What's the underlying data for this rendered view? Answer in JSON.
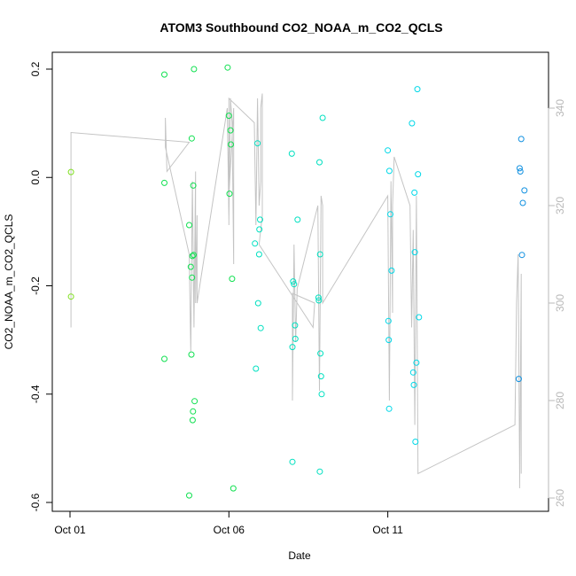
{
  "chart_data": {
    "type": "scatter",
    "title": "ATOM3 Southbound CO2_NOAA_m_CO2_QCLS",
    "xlabel": "Date",
    "ylabel": "CO2_NOAA_m_CO2_QCLS",
    "x_ticks": [
      "Oct 01",
      "Oct 06",
      "Oct 11"
    ],
    "xlim": [
      0,
      14.5
    ],
    "ylim": [
      -0.6,
      0.2
    ],
    "y_ticks": [
      "-0.6",
      "-0.4",
      "-0.2",
      "0.0",
      "0.2"
    ],
    "y2lim": [
      260,
      340
    ],
    "y2_ticks": [
      "260",
      "280",
      "300",
      "320",
      "340"
    ],
    "grid": false,
    "legend": "none",
    "point_color_scale": [
      "#80e020",
      "#10e050",
      "#00e0c0",
      "#00d8e8",
      "#1090e0"
    ],
    "series": [
      {
        "role": "difference (circles, left axis)",
        "points": [
          [
            0.03,
            0.01
          ],
          [
            0.03,
            -0.22
          ],
          [
            2.97,
            0.19
          ],
          [
            2.97,
            -0.01
          ],
          [
            2.97,
            -0.335
          ],
          [
            3.75,
            -0.088
          ],
          [
            3.75,
            -0.587
          ],
          [
            3.8,
            -0.165
          ],
          [
            3.82,
            -0.327
          ],
          [
            3.83,
            0.072
          ],
          [
            3.84,
            -0.185
          ],
          [
            3.85,
            -0.145
          ],
          [
            3.86,
            -0.448
          ],
          [
            3.87,
            -0.432
          ],
          [
            3.88,
            -0.015
          ],
          [
            3.89,
            -0.143
          ],
          [
            3.9,
            0.2
          ],
          [
            3.92,
            -0.413
          ],
          [
            4.96,
            0.203
          ],
          [
            5.0,
            0.114
          ],
          [
            5.02,
            -0.03
          ],
          [
            5.05,
            0.087
          ],
          [
            5.06,
            0.061
          ],
          [
            5.1,
            -0.187
          ],
          [
            5.14,
            -0.574
          ],
          [
            5.82,
            -0.122
          ],
          [
            5.85,
            -0.353
          ],
          [
            5.9,
            0.063
          ],
          [
            5.92,
            -0.232
          ],
          [
            5.95,
            -0.142
          ],
          [
            5.96,
            -0.096
          ],
          [
            5.98,
            -0.078
          ],
          [
            6.0,
            -0.278
          ],
          [
            6.98,
            0.044
          ],
          [
            7.0,
            -0.525
          ],
          [
            7.0,
            -0.313
          ],
          [
            7.02,
            -0.192
          ],
          [
            7.05,
            -0.197
          ],
          [
            7.08,
            -0.273
          ],
          [
            7.09,
            -0.298
          ],
          [
            7.16,
            -0.078
          ],
          [
            7.82,
            -0.222
          ],
          [
            7.83,
            -0.227
          ],
          [
            7.85,
            0.028
          ],
          [
            7.86,
            -0.543
          ],
          [
            7.87,
            -0.142
          ],
          [
            7.88,
            -0.325
          ],
          [
            7.9,
            -0.367
          ],
          [
            7.92,
            -0.4
          ],
          [
            7.95,
            0.11
          ],
          [
            10.0,
            0.05
          ],
          [
            10.02,
            -0.265
          ],
          [
            10.03,
            -0.3
          ],
          [
            10.04,
            -0.427
          ],
          [
            10.05,
            0.012
          ],
          [
            10.08,
            -0.068
          ],
          [
            10.12,
            -0.172
          ],
          [
            10.76,
            0.1
          ],
          [
            10.8,
            -0.36
          ],
          [
            10.82,
            -0.383
          ],
          [
            10.84,
            -0.028
          ],
          [
            10.85,
            -0.138
          ],
          [
            10.87,
            -0.488
          ],
          [
            10.9,
            -0.342
          ],
          [
            10.93,
            0.163
          ],
          [
            10.95,
            0.006
          ],
          [
            10.98,
            -0.258
          ],
          [
            14.15,
            0.017
          ],
          [
            14.17,
            0.011
          ],
          [
            14.2,
            0.071
          ],
          [
            14.25,
            -0.047
          ],
          [
            14.3,
            -0.024
          ],
          [
            14.22,
            -0.143
          ],
          [
            14.12,
            -0.372
          ]
        ]
      },
      {
        "role": "CO2 trace (grey line, right axis)",
        "points": [
          [
            0.03,
            295
          ],
          [
            0.03,
            335
          ],
          [
            3.75,
            333
          ],
          [
            3.05,
            327
          ],
          [
            3.0,
            338
          ],
          [
            3.0,
            332
          ],
          [
            3.75,
            310
          ],
          [
            3.8,
            290
          ],
          [
            3.85,
            325
          ],
          [
            3.9,
            295
          ],
          [
            3.95,
            327
          ],
          [
            3.95,
            300
          ],
          [
            4.0,
            318
          ],
          [
            4.0,
            300
          ],
          [
            4.95,
            340
          ],
          [
            5.0,
            317
          ],
          [
            5.05,
            342
          ],
          [
            5.1,
            337
          ],
          [
            5.15,
            308
          ],
          [
            5.15,
            320
          ],
          [
            5.15,
            340
          ],
          [
            5.0,
            322
          ],
          [
            5.0,
            316
          ],
          [
            5.0,
            342
          ],
          [
            5.8,
            337
          ],
          [
            5.85,
            316
          ],
          [
            5.9,
            342
          ],
          [
            5.95,
            320
          ],
          [
            6.0,
            325
          ],
          [
            6.0,
            340
          ],
          [
            6.05,
            343
          ],
          [
            6.05,
            326
          ],
          [
            6.05,
            318
          ],
          [
            5.95,
            312
          ],
          [
            7.65,
            295
          ],
          [
            7.7,
            300
          ],
          [
            7.0,
            302
          ],
          [
            7.0,
            280
          ],
          [
            7.05,
            312
          ],
          [
            7.1,
            292
          ],
          [
            7.15,
            303
          ],
          [
            7.8,
            320
          ],
          [
            7.85,
            282
          ],
          [
            7.9,
            322
          ],
          [
            7.95,
            320
          ],
          [
            7.95,
            300
          ],
          [
            10.0,
            322
          ],
          [
            10.05,
            280
          ],
          [
            10.1,
            325
          ],
          [
            10.15,
            298
          ],
          [
            10.15,
            320
          ],
          [
            10.2,
            330
          ],
          [
            10.7,
            320
          ],
          [
            10.75,
            295
          ],
          [
            10.8,
            315
          ],
          [
            10.85,
            275
          ],
          [
            10.9,
            322
          ],
          [
            10.95,
            265
          ],
          [
            14.0,
            275
          ],
          [
            14.05,
            300
          ],
          [
            14.1,
            310
          ],
          [
            14.15,
            265
          ],
          [
            14.15,
            262
          ],
          [
            14.2,
            306
          ],
          [
            14.2,
            265
          ]
        ]
      }
    ]
  }
}
